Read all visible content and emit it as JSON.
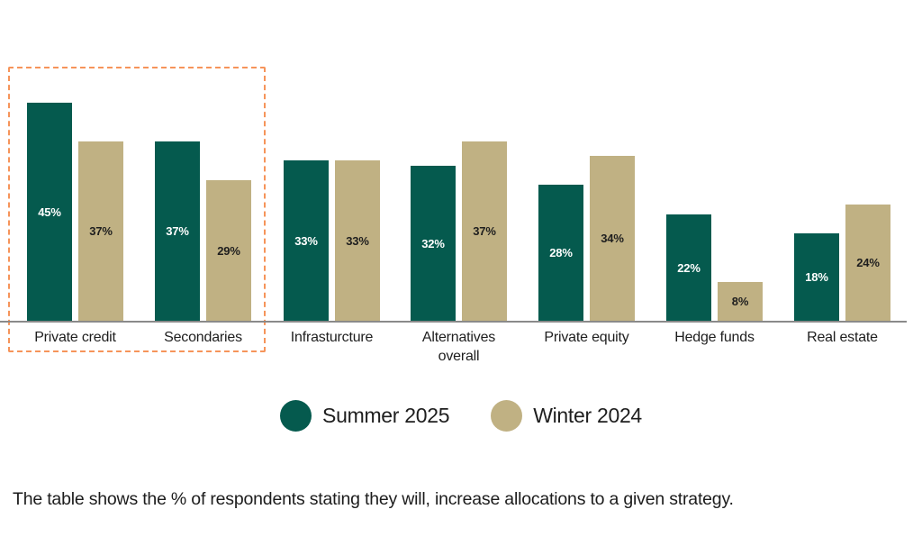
{
  "caption": "The table shows the % of respondents stating they will, increase allocations to a given strategy.",
  "legend": {
    "items": [
      {
        "label": "Summer 2025",
        "color": "#055A4E"
      },
      {
        "label": "Winter 2024",
        "color": "#C0B183"
      }
    ]
  },
  "chart_data": {
    "type": "bar",
    "categories": [
      "Private credit",
      "Secondaries",
      "Infrasturcture",
      "Alternatives overall",
      "Private equity",
      "Hedge funds",
      "Real estate"
    ],
    "series": [
      {
        "name": "Summer 2025",
        "color": "#055A4E",
        "values": [
          45,
          37,
          33,
          32,
          28,
          22,
          18
        ]
      },
      {
        "name": "Winter 2024",
        "color": "#C0B183",
        "values": [
          37,
          29,
          33,
          37,
          34,
          8,
          24
        ]
      }
    ],
    "value_suffix": "%",
    "title": "",
    "xlabel": "",
    "ylabel": "",
    "ylim": [
      0,
      66
    ],
    "grid": false,
    "legend_position": "bottom",
    "annotations": [
      {
        "type": "dashed-highlight-box",
        "color": "#F6945A",
        "around_categories": [
          "Private credit",
          "Secondaries"
        ]
      }
    ]
  }
}
